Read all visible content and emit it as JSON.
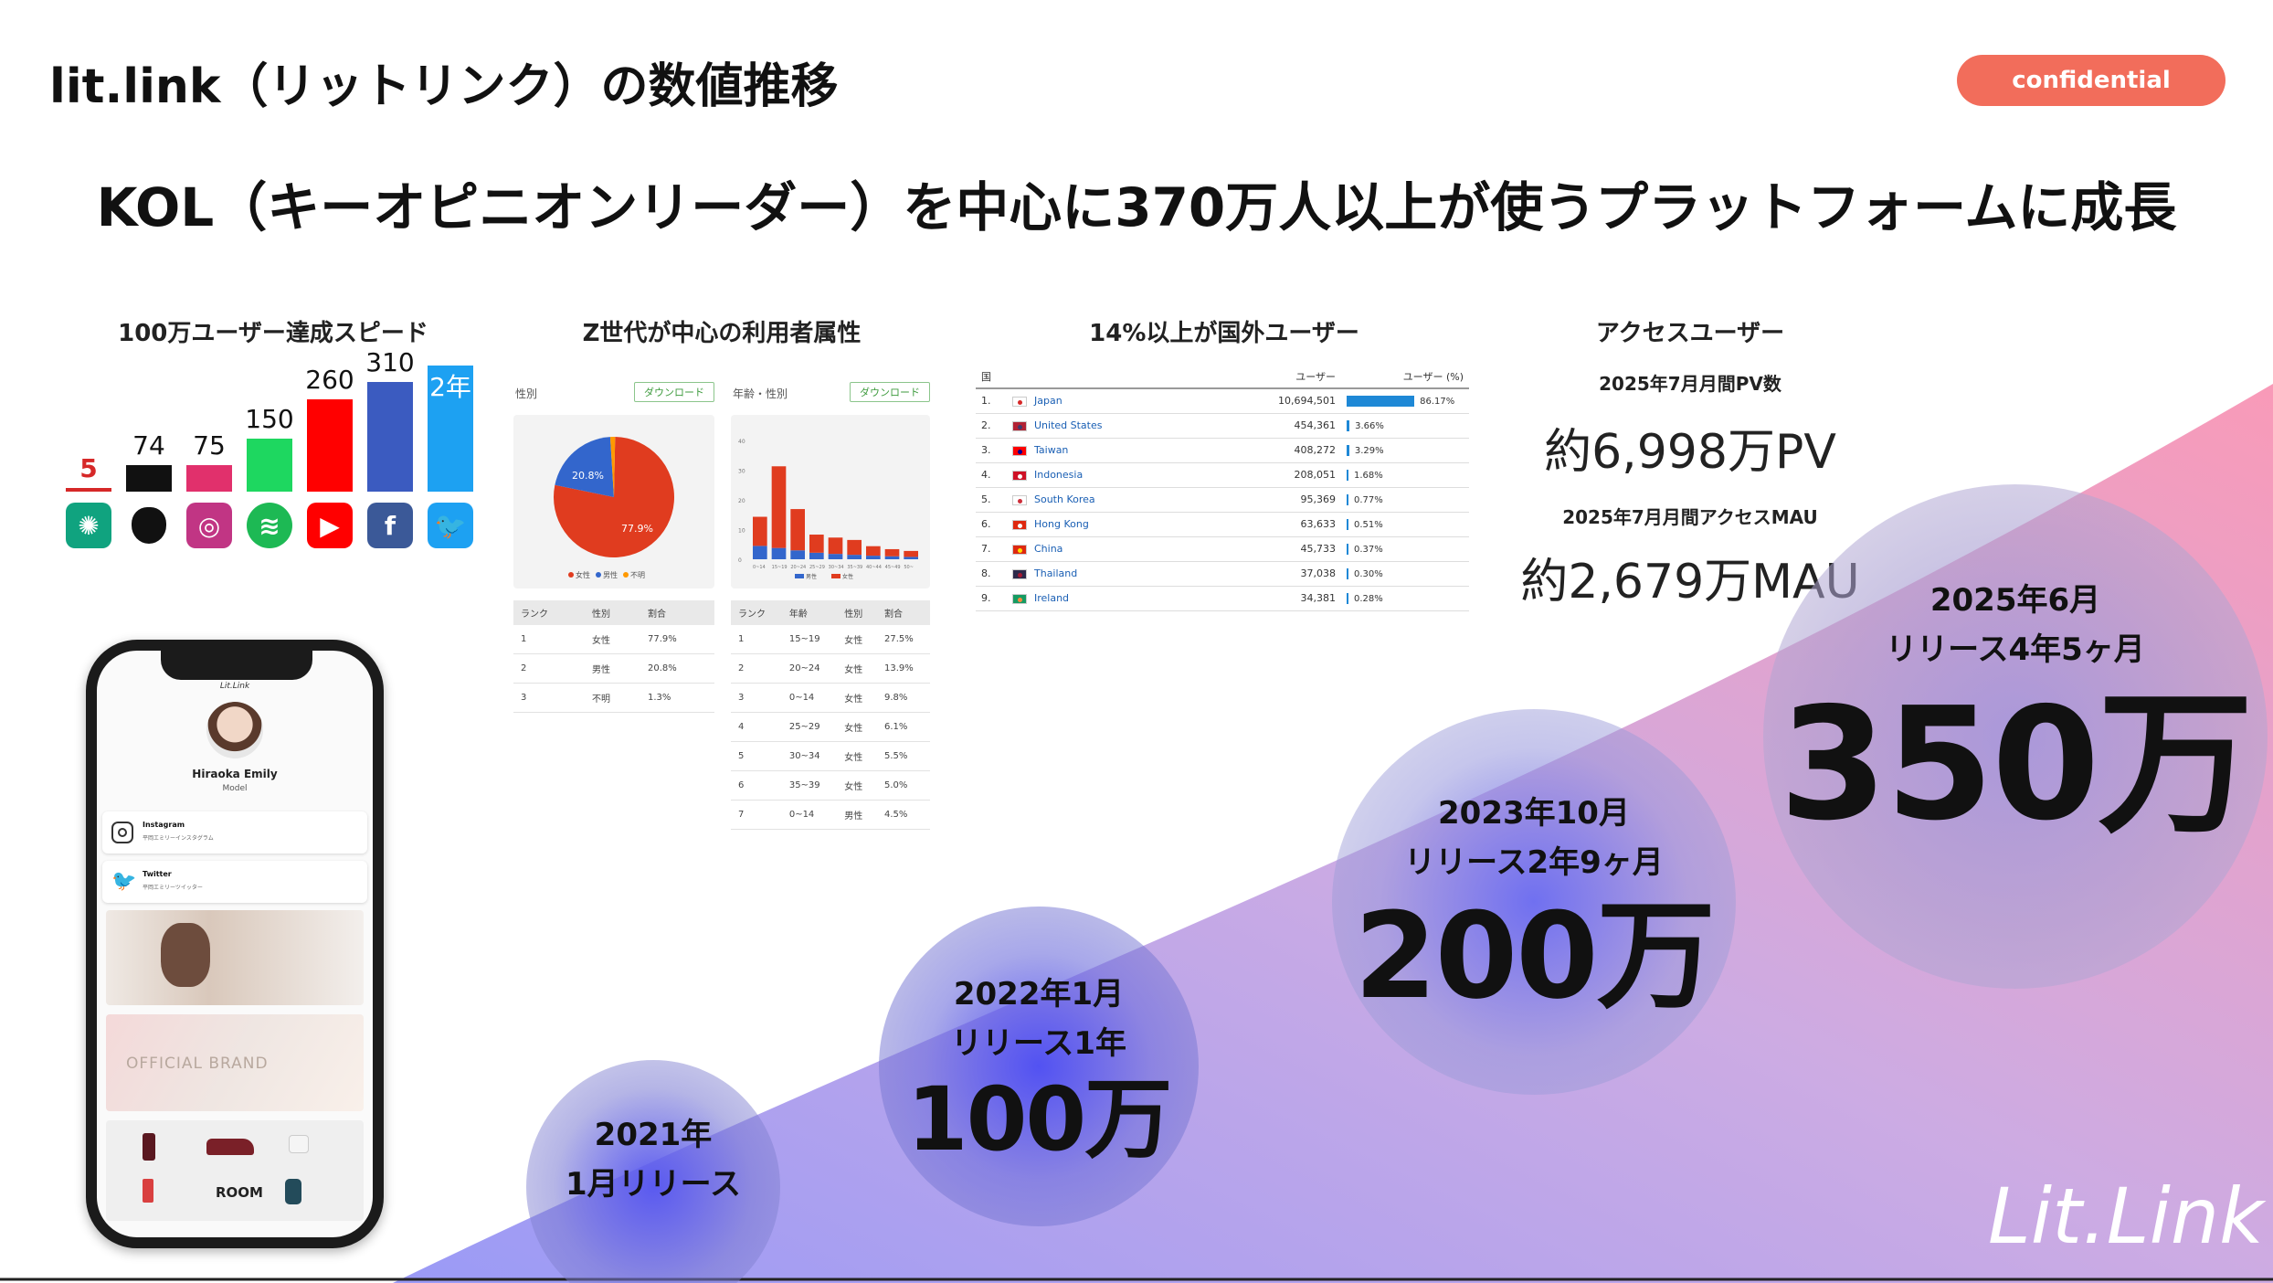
{
  "header": {
    "title": "lit.link（リットリンク）の数値推移",
    "confidential": "confidential",
    "headline": "KOL（キーオピニオンリーダー）を中心に370万人以上が使うプラットフォームに成長"
  },
  "speed": {
    "title": "100万ユーザー達成スピード",
    "items": [
      {
        "value": "5",
        "fraction": 0.016,
        "color": "#d62828",
        "icon": "chatgpt-icon",
        "icon_bg": "#10a37f"
      },
      {
        "value": "74",
        "fraction": 0.239,
        "color": "#111111",
        "icon": "apple-icon",
        "icon_bg": "#111111"
      },
      {
        "value": "75",
        "fraction": 0.242,
        "color": "#e1306c",
        "icon": "instagram-icon",
        "icon_bg": "#c13584"
      },
      {
        "value": "150",
        "fraction": 0.484,
        "color": "#1ed760",
        "icon": "spotify-icon",
        "icon_bg": "#1db954"
      },
      {
        "value": "260",
        "fraction": 0.839,
        "color": "#ff0000",
        "icon": "youtube-icon",
        "icon_bg": "#ff0000"
      },
      {
        "value": "310",
        "fraction": 1.0,
        "color": "#3b5bc0",
        "icon": "facebook-icon",
        "icon_bg": "#3b5998"
      },
      {
        "value": "2年",
        "fraction": 1.15,
        "color": "#1da1f2",
        "icon": "twitter-icon",
        "icon_bg": "#1da1f2"
      }
    ]
  },
  "gen_z": {
    "title": "Z世代が中心の利用者属性",
    "left_panel": {
      "label": "性別",
      "download": "ダウンロード",
      "pie": [
        {
          "label": "女性",
          "pct": 77.9,
          "color": "#e03c1f"
        },
        {
          "label": "男性",
          "pct": 20.8,
          "color": "#3366cc"
        },
        {
          "label": "不明",
          "pct": 1.3,
          "color": "#ff9900"
        }
      ],
      "pie_labels": {
        "big": "77.9%",
        "small": "20.8%"
      },
      "headers": [
        "ランク",
        "性別",
        "割合"
      ],
      "rows": [
        [
          "1",
          "女性",
          "77.9%"
        ],
        [
          "2",
          "男性",
          "20.8%"
        ],
        [
          "3",
          "不明",
          "1.3%"
        ]
      ]
    },
    "right_panel": {
      "label": "年齢・性別",
      "download": "ダウンロード",
      "y_ticks": [
        "0",
        "10",
        "20",
        "30",
        "40"
      ],
      "x_ticks": [
        "0~14",
        "15~19",
        "20~24",
        "25~29",
        "30~34",
        "35~39",
        "40~44",
        "45~49",
        "50~"
      ],
      "legend": [
        "男性",
        "女性"
      ],
      "headers": [
        "ランク",
        "年齢",
        "性別",
        "割合"
      ],
      "rows": [
        [
          "1",
          "15~19",
          "女性",
          "27.5%"
        ],
        [
          "2",
          "20~24",
          "女性",
          "13.9%"
        ],
        [
          "3",
          "0~14",
          "女性",
          "9.8%"
        ],
        [
          "4",
          "25~29",
          "女性",
          "6.1%"
        ],
        [
          "5",
          "30~34",
          "女性",
          "5.5%"
        ],
        [
          "6",
          "35~39",
          "女性",
          "5.0%"
        ],
        [
          "7",
          "0~14",
          "男性",
          "4.5%"
        ]
      ]
    }
  },
  "overseas": {
    "title": "14%以上が国外ユーザー",
    "headers": [
      "国",
      "ユーザー",
      "ユーザー (%)"
    ],
    "rows": [
      {
        "rank": "1.",
        "flag": "#ffffff",
        "flag_dot": "#d62828",
        "country": "Japan",
        "users": "10,694,501",
        "pct": "86.17%",
        "fraction": 0.8617
      },
      {
        "rank": "2.",
        "flag": "#b22234",
        "flag_dot": "#3c3b6e",
        "country": "United States",
        "users": "454,361",
        "pct": "3.66%",
        "fraction": 0.0366
      },
      {
        "rank": "3.",
        "flag": "#fe0000",
        "flag_dot": "#000095",
        "country": "Taiwan",
        "users": "408,272",
        "pct": "3.29%",
        "fraction": 0.0329
      },
      {
        "rank": "4.",
        "flag": "#ce1126",
        "flag_dot": "#ffffff",
        "country": "Indonesia",
        "users": "208,051",
        "pct": "1.68%",
        "fraction": 0.0168
      },
      {
        "rank": "5.",
        "flag": "#ffffff",
        "flag_dot": "#cd2e3a",
        "country": "South Korea",
        "users": "95,369",
        "pct": "0.77%",
        "fraction": 0.0077
      },
      {
        "rank": "6.",
        "flag": "#de2910",
        "flag_dot": "#ffffff",
        "country": "Hong Kong",
        "users": "63,633",
        "pct": "0.51%",
        "fraction": 0.0051
      },
      {
        "rank": "7.",
        "flag": "#de2910",
        "flag_dot": "#ffde00",
        "country": "China",
        "users": "45,733",
        "pct": "0.37%",
        "fraction": 0.0037
      },
      {
        "rank": "8.",
        "flag": "#2d2a4a",
        "flag_dot": "#a51931",
        "country": "Thailand",
        "users": "37,038",
        "pct": "0.30%",
        "fraction": 0.003
      },
      {
        "rank": "9.",
        "flag": "#169b62",
        "flag_dot": "#ff883e",
        "country": "Ireland",
        "users": "34,381",
        "pct": "0.28%",
        "fraction": 0.0028
      }
    ]
  },
  "access": {
    "title": "アクセスユーザー",
    "pv_label": "2025年7月月間PV数",
    "pv_value": "約6,998万PV",
    "mau_label": "2025年7月月間アクセスMAU",
    "mau_value": "約2,679万MAU"
  },
  "phone": {
    "profile_name": "Hiraoka Emily",
    "profile_role": "Model",
    "links": [
      {
        "title": "Instagram",
        "sub": "平岡エミリーインスタグラム",
        "icon": "instagram-icon"
      },
      {
        "title": "Twitter",
        "sub": "平岡エミリーツイッター",
        "icon": "twitter-icon"
      }
    ],
    "brand_text": "OFFICIAL BRAND",
    "shop_text": "ROOM",
    "logo_text": "Lit.Link"
  },
  "milestones": [
    {
      "date": "2021年",
      "date2": "1月リリース",
      "value": ""
    },
    {
      "date": "2022年1月",
      "date2": "リリース1年",
      "value": "100万"
    },
    {
      "date": "2023年10月",
      "date2": "リリース2年9ヶ月",
      "value": "200万"
    },
    {
      "date": "2025年6月",
      "date2": "リリース4年5ヶ月",
      "value": "350万"
    }
  ],
  "footer": {
    "logo": "Lit.Link"
  }
}
